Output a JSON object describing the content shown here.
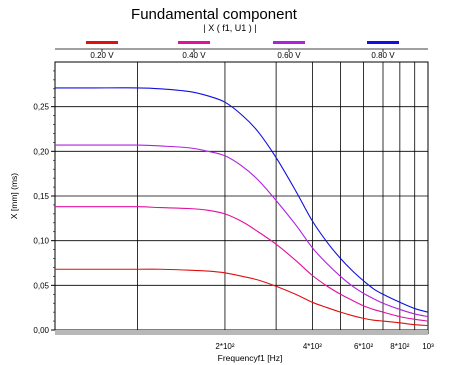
{
  "chart_data": {
    "type": "line",
    "title": "Fundamental component",
    "subtitle": "| X ( f1, U1 ) |",
    "xlabel": "Frequencyf1 [Hz]",
    "ylabel": "X [mm] (ms)",
    "x_scale": "log",
    "xlim": [
      52,
      1000
    ],
    "ylim": [
      0,
      0.3
    ],
    "x_tick_labels": [
      "2*10²",
      "4*10²",
      "6*10²",
      "8*10²",
      "10³"
    ],
    "x_tick_values": [
      200,
      400,
      600,
      800,
      1000
    ],
    "y_tick_labels": [
      "0,00",
      "0,05",
      "0,10",
      "0,15",
      "0,20",
      "0,25"
    ],
    "y_tick_values": [
      0,
      0.05,
      0.1,
      0.15,
      0.2,
      0.25
    ],
    "legend_position": "top",
    "x": [
      52,
      70,
      100,
      120,
      150,
      175,
      200,
      230,
      260,
      300,
      350,
      400,
      450,
      500,
      550,
      600,
      650,
      700,
      800,
      900,
      1000
    ],
    "series": [
      {
        "name": "0.20 V",
        "color": "#e01010",
        "values": [
          0.068,
          0.068,
          0.068,
          0.068,
          0.067,
          0.066,
          0.064,
          0.06,
          0.056,
          0.049,
          0.04,
          0.031,
          0.025,
          0.02,
          0.016,
          0.013,
          0.011,
          0.01,
          0.008,
          0.006,
          0.005
        ]
      },
      {
        "name": "0.40 V",
        "color": "#e010a0",
        "values": [
          0.138,
          0.138,
          0.138,
          0.137,
          0.136,
          0.134,
          0.13,
          0.121,
          0.11,
          0.096,
          0.078,
          0.061,
          0.049,
          0.04,
          0.033,
          0.027,
          0.023,
          0.02,
          0.015,
          0.012,
          0.01
        ]
      },
      {
        "name": "0.60 V",
        "color": "#b020e0",
        "values": [
          0.207,
          0.207,
          0.207,
          0.206,
          0.204,
          0.2,
          0.195,
          0.183,
          0.168,
          0.145,
          0.118,
          0.092,
          0.074,
          0.06,
          0.049,
          0.041,
          0.035,
          0.03,
          0.023,
          0.018,
          0.015
        ]
      },
      {
        "name": "0.80 V",
        "color": "#1010e0",
        "values": [
          0.271,
          0.271,
          0.271,
          0.27,
          0.267,
          0.262,
          0.255,
          0.24,
          0.222,
          0.193,
          0.156,
          0.122,
          0.098,
          0.08,
          0.066,
          0.055,
          0.046,
          0.04,
          0.031,
          0.024,
          0.02
        ]
      }
    ]
  }
}
